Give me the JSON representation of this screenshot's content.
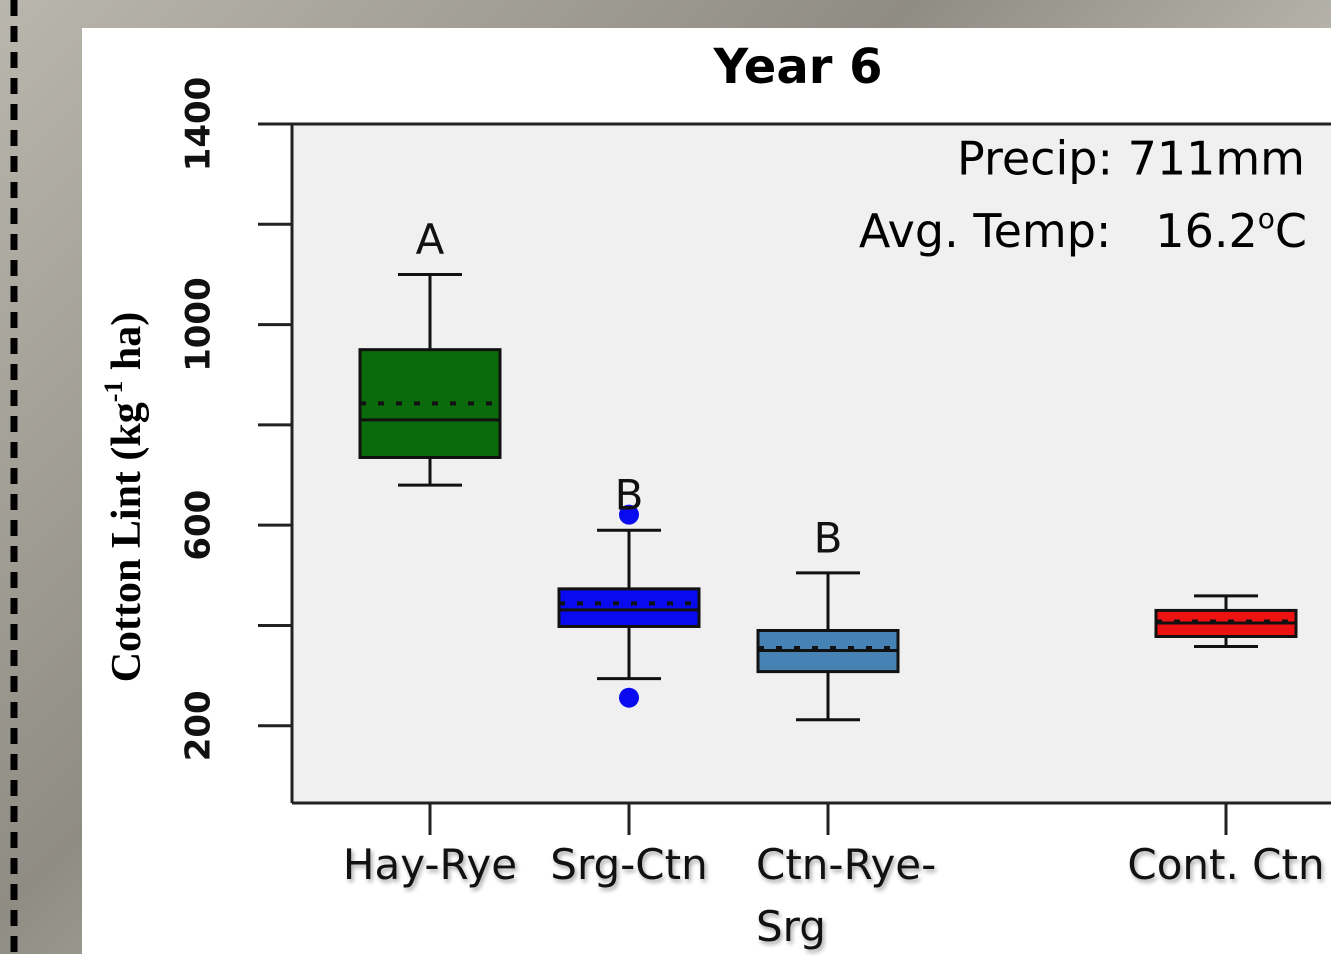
{
  "chart_data": {
    "type": "box",
    "title": "Year 6",
    "y_label": "Cotton Lint (kg",
    "y_label_sup": "-1",
    "y_label_end": " ha)",
    "annotations": {
      "precip": "Precip: 711mm",
      "temp": "Avg. Temp:   16.2",
      "temp_sup": "o",
      "temp_unit": "C"
    },
    "categories": [
      "Hay-Rye",
      "Srg-Ctn",
      "Ctn-Rye-Srg",
      null,
      "Cont. Ctn"
    ],
    "colors": [
      "#0b6a0b",
      "#0a0af0",
      "#4682b4",
      null,
      "#ee1111"
    ],
    "whisker_high": [
      1100,
      590,
      505,
      null,
      459
    ],
    "q3": [
      950,
      473,
      390,
      null,
      430
    ],
    "mean": [
      843,
      444,
      355,
      null,
      408
    ],
    "median": [
      810,
      431,
      350,
      null,
      405
    ],
    "q1": [
      735,
      398,
      308,
      null,
      378
    ],
    "whisker_low": [
      680,
      294,
      212,
      null,
      358
    ],
    "outliers": [
      [],
      [
        621,
        256
      ],
      [],
      [],
      []
    ],
    "letters": [
      "A",
      "B",
      "B",
      null,
      null
    ],
    "ylim": [
      46,
      1400
    ],
    "yticks": [
      200,
      600,
      1000,
      1400
    ],
    "yticks_minor": [
      400,
      800,
      1200
    ]
  }
}
